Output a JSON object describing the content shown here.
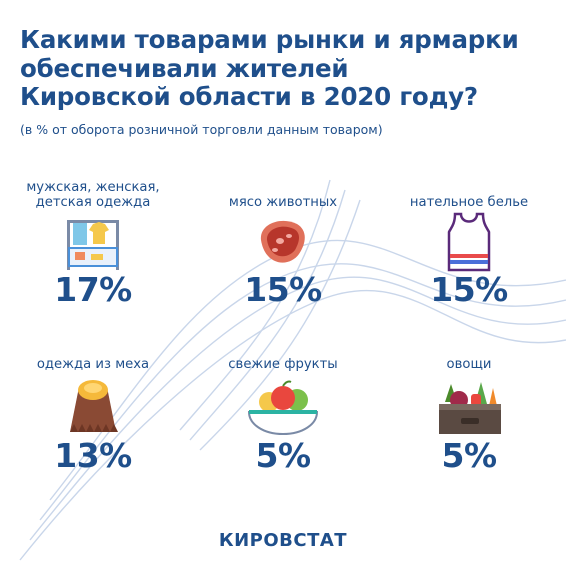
{
  "header": {
    "title_lines": [
      "Какими товарами рынки и ярмарки",
      "обеспечивали жителей",
      "Кировской области в 2020 году?"
    ],
    "subtitle": "(в % от оборота розничной торговли данным товаром)"
  },
  "items": [
    {
      "label_lines": [
        "мужская, женская,",
        "детская одежда"
      ],
      "value": "17%",
      "icon": "clothes-rack-icon"
    },
    {
      "label_lines": [
        "мясо животных"
      ],
      "value": "15%",
      "icon": "meat-steak-icon"
    },
    {
      "label_lines": [
        "нательное белье"
      ],
      "value": "15%",
      "icon": "tank-top-icon"
    },
    {
      "label_lines": [
        "одежда из меха"
      ],
      "value": "13%",
      "icon": "fur-coat-icon"
    },
    {
      "label_lines": [
        "свежие фрукты"
      ],
      "value": "5%",
      "icon": "fruit-bowl-icon"
    },
    {
      "label_lines": [
        "овощи"
      ],
      "value": "5%",
      "icon": "vegetable-crate-icon"
    }
  ],
  "footer": {
    "brand": "КИРОВСТАТ"
  },
  "colors": {
    "text": "#1f4f8b",
    "waves": "#c9d6ea"
  }
}
